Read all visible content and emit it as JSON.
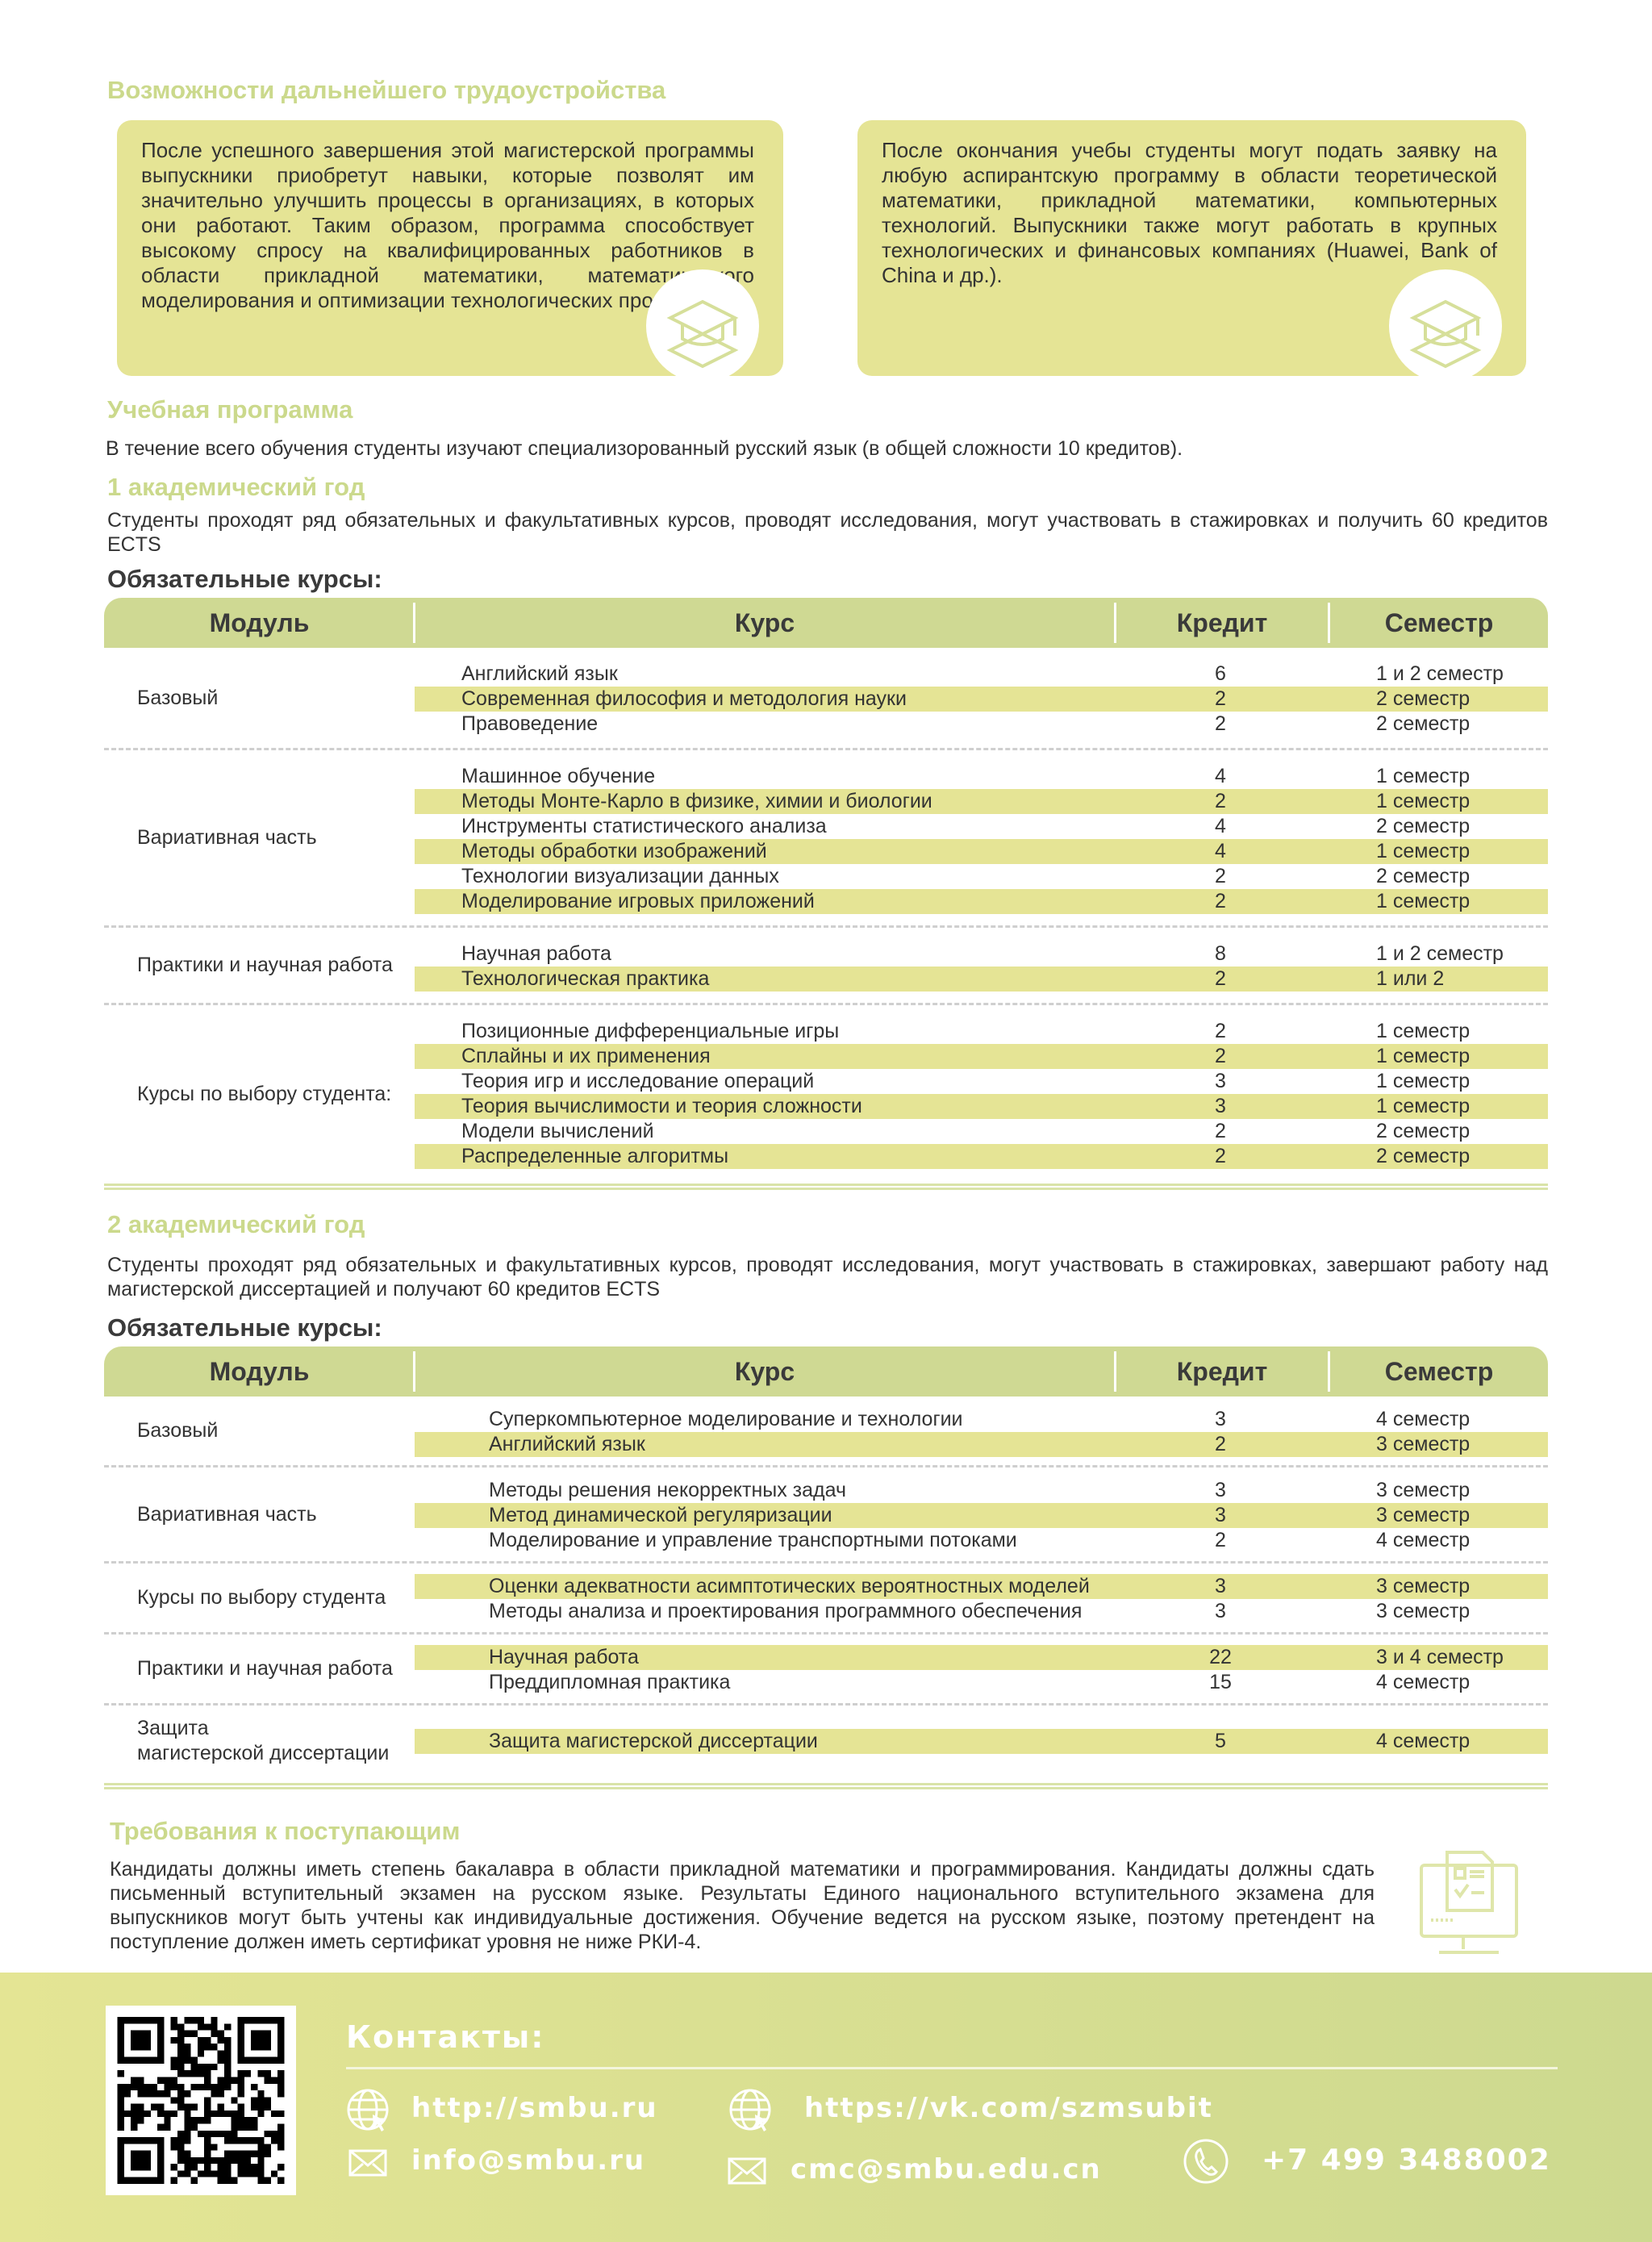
{
  "career": {
    "title": "Возможности дальнейшего трудоустройства",
    "box1": "После успешного завершения этой магистерской программы выпускники приобретут навыки, которые позволят им значительно улучшить процессы в организациях, в которых они работают. Таким образом, программа способствует высокому спросу на квалифицированных работников в области прикладной математики, математического моделирования и оптимизации технологических процессов.",
    "box2": "После окончания учебы студенты могут подать заявку на любую аспирантскую программу в области теоретической математики, прикладной математики, компьютерных технологий. Выпускники также могут работать в крупных технологических и финансовых компаниях (Huawei, Bank of China и др.).",
    "icon": "graduation-cap-books-icon"
  },
  "curriculum": {
    "title": "Учебная программа",
    "intro": "В течение всего обучения студенты изучают специализорованный русский язык (в общей сложности 10 кредитов).",
    "headers": [
      "Модуль",
      "Курс",
      "Кредит",
      "Семестр"
    ],
    "year1": {
      "title": "1 академический год",
      "desc": "Студенты проходят ряд обязательных и факультативных курсов, проводят исследования, могут участвовать в стажировках и получить 60 кредитов ECTS",
      "subtitle": "Обязательные курсы:",
      "groups": [
        {
          "module": "Базовый",
          "rows": [
            {
              "course": "Английский язык",
              "credit": "6",
              "semester": "1 и 2 семестр",
              "hl": false
            },
            {
              "course": "Современная философия и методология науки",
              "credit": "2",
              "semester": "2 семестр",
              "hl": true
            },
            {
              "course": "Правоведение",
              "credit": "2",
              "semester": "2 семестр",
              "hl": false
            }
          ]
        },
        {
          "module": "Вариативная часть",
          "rows": [
            {
              "course": "Машинное обучение",
              "credit": "4",
              "semester": "1 семестр",
              "hl": false
            },
            {
              "course": "Методы Монте-Карло в физике, химии и биологии",
              "credit": "2",
              "semester": "1 семестр",
              "hl": true
            },
            {
              "course": "Инструменты статистического анализа",
              "credit": "4",
              "semester": "2 семестр",
              "hl": false
            },
            {
              "course": "Методы обработки изображений",
              "credit": "4",
              "semester": "1 семестр",
              "hl": true
            },
            {
              "course": "Технологии визуализации данных",
              "credit": "2",
              "semester": "2 семестр",
              "hl": false
            },
            {
              "course": "Моделирование игровых приложений",
              "credit": "2",
              "semester": "1 семестр",
              "hl": true
            }
          ]
        },
        {
          "module": "Практики и научная работа",
          "rows": [
            {
              "course": "Научная работа",
              "credit": "8",
              "semester": "1 и 2 семестр",
              "hl": false
            },
            {
              "course": "Технологическая практика",
              "credit": "2",
              "semester": "1 или 2",
              "hl": true
            }
          ]
        },
        {
          "module": "Курсы по выбору студента:",
          "rows": [
            {
              "course": "Позиционные дифференциальные игры",
              "credit": "2",
              "semester": "1 семестр",
              "hl": false
            },
            {
              "course": "Сплайны и их применения",
              "credit": "2",
              "semester": "1 семестр",
              "hl": true
            },
            {
              "course": "Теория игр и исследование операций",
              "credit": "3",
              "semester": "1 семестр",
              "hl": false
            },
            {
              "course": "Теория вычислимости и теория сложности",
              "credit": "3",
              "semester": "1 семестр",
              "hl": true
            },
            {
              "course": "Модели вычислений",
              "credit": "2",
              "semester": "2 семестр",
              "hl": false
            },
            {
              "course": "Распределенные алгоритмы",
              "credit": "2",
              "semester": "2 семестр",
              "hl": true
            }
          ]
        }
      ]
    },
    "year2": {
      "title": "2 академический год",
      "desc": "Студенты проходят ряд обязательных и факультативных курсов, проводят исследования, могут участвовать в стажировках, завершают работу над магистерской диссертацией и получают 60 кредитов ECTS",
      "subtitle": "Обязательные курсы:",
      "groups": [
        {
          "module": "Базовый",
          "rows": [
            {
              "course": "Суперкомпьютерное моделирование и технологии",
              "credit": "3",
              "semester": "4 семестр",
              "hl": false
            },
            {
              "course": "Английский язык",
              "credit": "2",
              "semester": "3 семестр",
              "hl": true
            }
          ]
        },
        {
          "module": "Вариативная часть",
          "rows": [
            {
              "course": "Методы решения некорректных задач",
              "credit": "3",
              "semester": "3 семестр",
              "hl": false
            },
            {
              "course": "Метод динамической регуляризации",
              "credit": "3",
              "semester": "3 семестр",
              "hl": true
            },
            {
              "course": "Моделирование и управление транспортными потоками",
              "credit": "2",
              "semester": "4 семестр",
              "hl": false
            }
          ]
        },
        {
          "module": "Курсы по выбору студента",
          "rows": [
            {
              "course": "Оценки адекватности асимптотических вероятностных моделей",
              "credit": "3",
              "semester": "3 семестр",
              "hl": true
            },
            {
              "course": "Методы анализа и проектирования программного обеспечения",
              "credit": "3",
              "semester": "3 семестр",
              "hl": false
            }
          ]
        },
        {
          "module": "Практики и научная работа",
          "rows": [
            {
              "course": "Научная работа",
              "credit": "22",
              "semester": "3 и 4 семестр",
              "hl": true
            },
            {
              "course": "Преддипломная практика",
              "credit": "15",
              "semester": "4 семестр",
              "hl": false
            }
          ]
        },
        {
          "module": "Защита\nмагистерской диссертации",
          "rows": [
            {
              "course": "Защита магистерской диссертации",
              "credit": "5",
              "semester": "4 семестр",
              "hl": true
            }
          ]
        }
      ]
    }
  },
  "requirements": {
    "title": "Требования к поступающим",
    "text": "Кандидаты должны иметь степень бакалавра в области прикладной математики и программирования. Кандидаты должны сдать письменный вступительный экзамен на русском языке. Результаты Единого национального вступительного экзамена для выпускников могут быть учтены как индивидуальные достижения. Обучение ведется на русском языке, поэтому претендент на поступление должен иметь сертификат уровня не ниже РКИ-4.",
    "icon": "computer-checklist-icon"
  },
  "contacts": {
    "title": "Контакты:",
    "site": "http://smbu.ru",
    "vk": "https://vk.com/szmsubit",
    "email1": "info@smbu.ru",
    "email2": "cmc@smbu.edu.cn",
    "phone": "+7 499 3488002"
  },
  "colors": {
    "accent": "#cbd98c",
    "box": "#e5e495",
    "header": "#cfd993"
  }
}
